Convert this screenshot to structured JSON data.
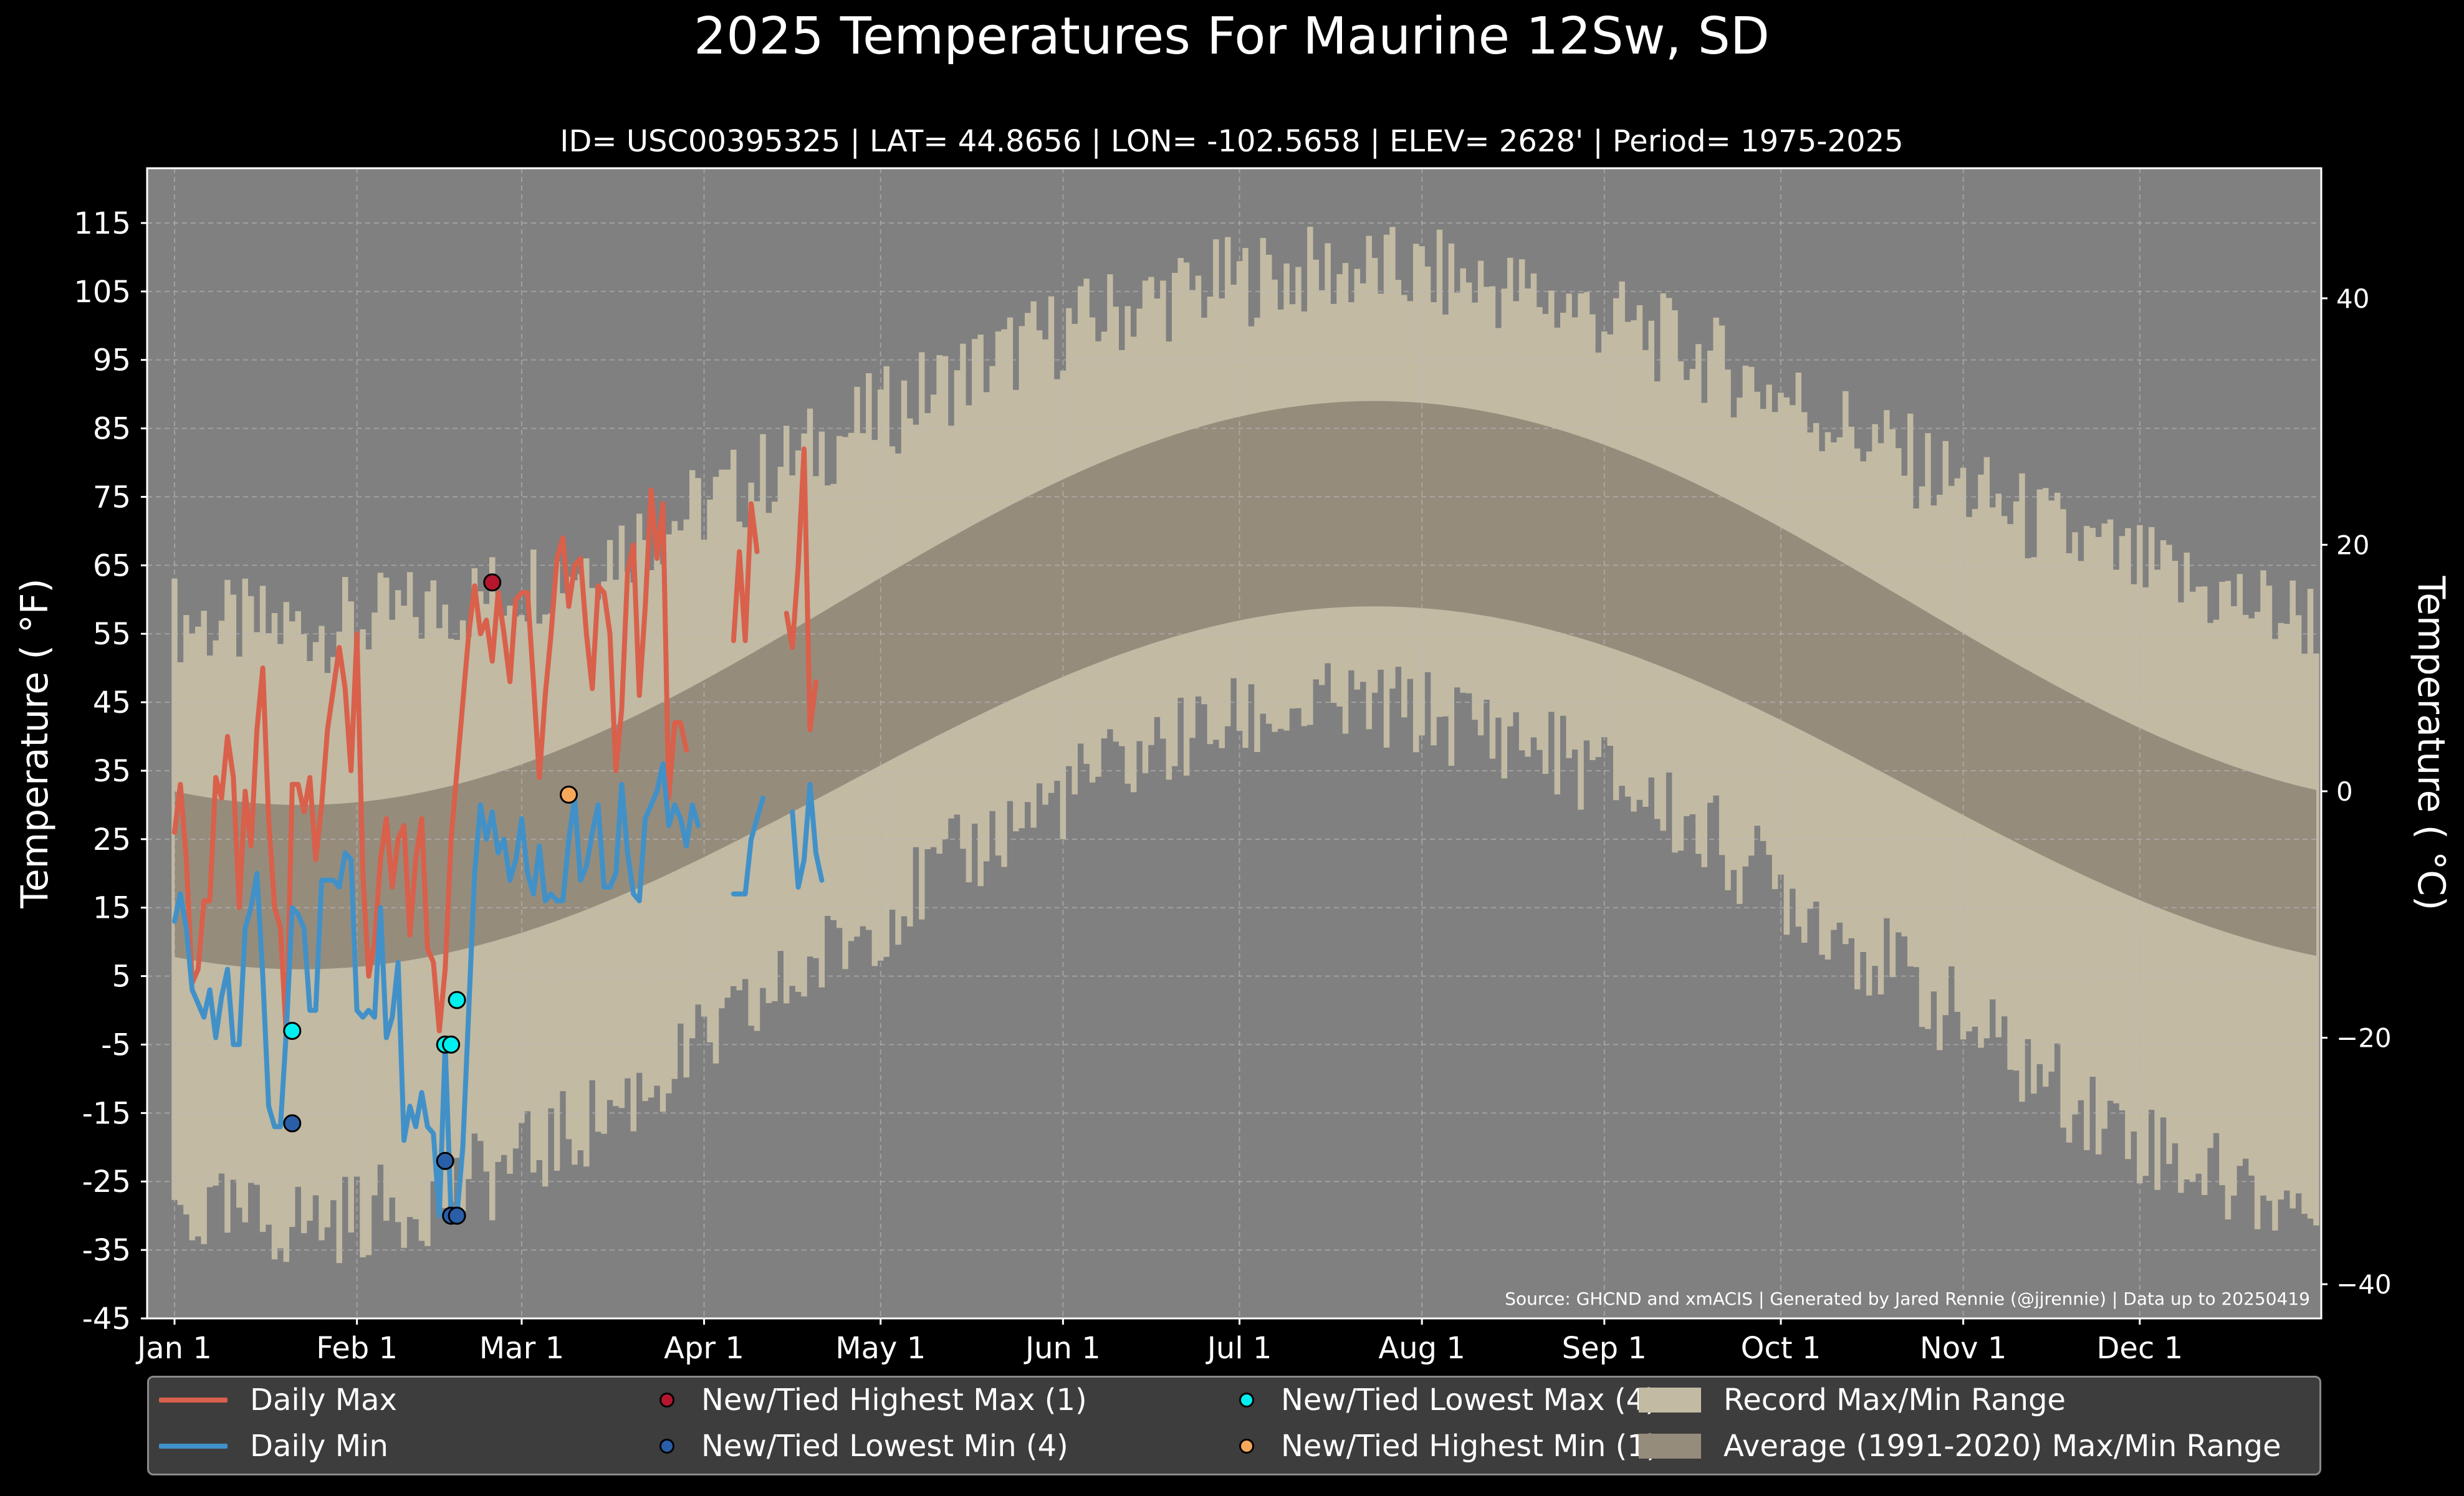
{
  "colors": {
    "background": "#000000",
    "plot_bg": "#808080",
    "record_range": "#c2baa3",
    "average_range": "#968c7c",
    "daily_max": "#d9604b",
    "daily_min": "#4191c8",
    "new_highest_max": "#b5162e",
    "new_lowest_min": "#2a5fa8",
    "new_lowest_max": "#00f0f0",
    "new_highest_min": "#f5a85a"
  },
  "chart_data": {
    "type": "line",
    "title": "2025 Temperatures For Maurine 12Sw, SD",
    "subtitle": "ID= USC00395325 | LAT= 44.8656 | LON= -102.5658 | ELEV= 2628' | Period= 1975-2025",
    "ylabel_left": "Temperature ( °F)",
    "ylabel_right": "Temperature ( °C)",
    "source": "Source: GHCND and xmACIS | Generated by Jared Rennie (@jjrennie) | Data up to 20250419",
    "ylim_f": [
      -45,
      123
    ],
    "yticks_left": [
      "115",
      "105",
      "95",
      "85",
      "75",
      "65",
      "55",
      "45",
      "35",
      "25",
      "15",
      "5",
      "-5",
      "-15",
      "-25",
      "-35",
      "-45"
    ],
    "yticks_right": [
      "40",
      "20",
      "0",
      "−20",
      "−40"
    ],
    "x_ticks": [
      "Jan 1",
      "Feb 1",
      "Mar 1",
      "Apr 1",
      "May 1",
      "Jun 1",
      "Jul 1",
      "Aug 1",
      "Sep 1",
      "Oct 1",
      "Nov 1",
      "Dec 1"
    ],
    "grid": true,
    "daily_max": [
      26,
      33,
      22,
      4,
      6,
      16,
      16,
      34,
      31,
      40,
      34,
      15,
      32,
      24,
      41,
      50,
      28,
      15,
      12,
      -4,
      33,
      33,
      29,
      34,
      22,
      30,
      41,
      47,
      53,
      47,
      35,
      55,
      20,
      5,
      10,
      22,
      28,
      18,
      25,
      27,
      11,
      22,
      28,
      9,
      7,
      -3,
      6,
      25,
      35,
      45,
      55,
      62,
      55,
      57,
      51,
      61,
      55,
      48,
      60,
      61,
      61,
      48,
      34,
      46,
      55,
      66,
      69,
      59,
      65,
      66,
      55,
      47,
      62,
      61,
      55,
      35,
      44,
      64,
      68,
      46,
      59,
      76,
      66,
      74,
      31,
      42,
      42,
      38,
      null,
      null,
      null,
      null,
      null,
      null,
      null,
      54,
      67,
      54,
      74,
      67,
      null,
      null,
      null,
      null,
      58,
      53,
      65,
      82,
      41,
      48
    ],
    "daily_min": [
      13,
      17,
      12,
      3,
      1,
      -1,
      3,
      -4,
      2,
      6,
      -5,
      -5,
      12,
      15,
      20,
      5,
      -14,
      -17,
      -17,
      -3,
      15,
      14,
      12,
      0,
      0,
      19,
      19,
      19,
      18,
      23,
      22,
      0,
      -1,
      0,
      -1,
      15,
      -4,
      -1,
      7,
      -19,
      -14,
      -17,
      -12,
      -17,
      -18,
      -30,
      -5,
      -30,
      -30,
      -20,
      0,
      20,
      30,
      25,
      29,
      23,
      25,
      19,
      22,
      28,
      20,
      17,
      24,
      16,
      17,
      16,
      16,
      25,
      31,
      19,
      21,
      26,
      30,
      18,
      18,
      20,
      33,
      23,
      17,
      16,
      28,
      30,
      32,
      36,
      27,
      30,
      28,
      24,
      30,
      27,
      null,
      null,
      null,
      null,
      null,
      17,
      17,
      17,
      25,
      28,
      31,
      null,
      null,
      null,
      null,
      29,
      18,
      22,
      33,
      23,
      19
    ],
    "records": {
      "new_highest_max": [
        {
          "day": 54,
          "value": 62.5
        }
      ],
      "new_lowest_min": [
        {
          "day": 20,
          "value": -16.5
        },
        {
          "day": 46,
          "value": -22
        },
        {
          "day": 47,
          "value": -30
        },
        {
          "day": 48,
          "value": -30
        }
      ],
      "new_lowest_max": [
        {
          "day": 20,
          "value": -3
        },
        {
          "day": 46,
          "value": -5
        },
        {
          "day": 47,
          "value": -5
        },
        {
          "day": 48,
          "value": 1.5
        }
      ],
      "new_highest_min": [
        {
          "day": 67,
          "value": 31.5
        }
      ]
    },
    "average_range": {
      "max_winter": 30,
      "max_summer": 89,
      "min_winter": 6,
      "min_summer": 59,
      "peak_day": 204
    },
    "record_range": {
      "high_winter": 56,
      "high_summer": 108,
      "low_winter": -31,
      "low_summer": 44,
      "peak_day": 200
    }
  },
  "legend": {
    "daily_max": "Daily Max",
    "daily_min": "Daily Min",
    "highest_max": "New/Tied Highest Max (1)",
    "lowest_min": "New/Tied Lowest Min (4)",
    "lowest_max": "New/Tied Lowest Max (4)",
    "highest_min": "New/Tied Highest Min (1)",
    "record_range": "Record Max/Min Range",
    "average_range": "Average (1991-2020) Max/Min Range"
  }
}
